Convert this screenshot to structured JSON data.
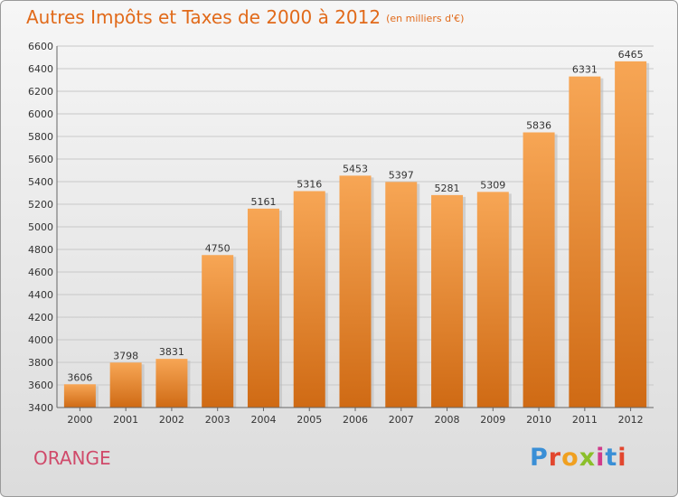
{
  "header": {
    "title": "Autres Impôts et Taxes de 2000 à 2012",
    "unit": "(en milliers d'€)"
  },
  "footer": {
    "city": "ORANGE",
    "brand_letters": [
      {
        "ch": "P",
        "color": "#3a8fd6"
      },
      {
        "ch": "r",
        "color": "#e2462e"
      },
      {
        "ch": "o",
        "color": "#f0a020"
      },
      {
        "ch": "x",
        "color": "#8bbf2a"
      },
      {
        "ch": "i",
        "color": "#d03a8a"
      },
      {
        "ch": "t",
        "color": "#3a8fd6"
      },
      {
        "ch": "i",
        "color": "#e2462e"
      }
    ]
  },
  "chart_data": {
    "type": "bar",
    "title": "Autres Impôts et Taxes de 2000 à 2012",
    "subtitle": "(en milliers d'€)",
    "categories": [
      "2000",
      "2001",
      "2002",
      "2003",
      "2004",
      "2005",
      "2006",
      "2007",
      "2008",
      "2009",
      "2010",
      "2011",
      "2012"
    ],
    "values": [
      3606,
      3798,
      3831,
      4750,
      5161,
      5316,
      5453,
      5397,
      5281,
      5309,
      5836,
      6331,
      6465
    ],
    "ylim": [
      3400,
      6600
    ],
    "yticks": [
      3400,
      3600,
      3800,
      4000,
      4200,
      4400,
      4600,
      4800,
      5000,
      5200,
      5400,
      5600,
      5800,
      6000,
      6200,
      6400,
      6600
    ],
    "grid": true,
    "colors": {
      "bar_top": "#f7a655",
      "bar_bottom": "#cf6a14",
      "grid": "#c8c8c8"
    }
  }
}
